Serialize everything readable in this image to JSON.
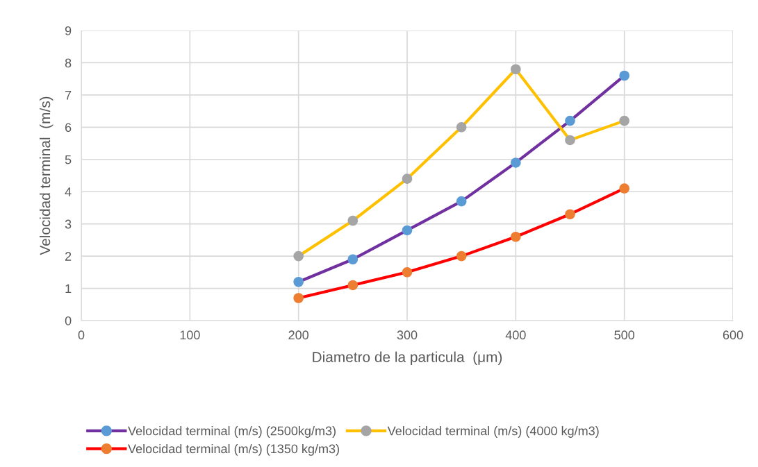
{
  "chart_data": {
    "type": "line",
    "xlabel": "Diametro de la particula  (μm)",
    "ylabel": "Velocidad terminal  (m/s)",
    "x": [
      200,
      250,
      300,
      350,
      400,
      450,
      500
    ],
    "series": [
      {
        "name": "Velocidad terminal (m/s) (2500kg/m3)",
        "color": "#7030a0",
        "colors": [
          "#5b9bd5",
          "#5b9bd5",
          "#5b9bd5",
          "#5b9bd5",
          "#5b9bd5",
          "#5b9bd5",
          "#5b9bd5"
        ],
        "values": [
          1.2,
          1.9,
          2.8,
          3.7,
          4.9,
          6.2,
          7.6
        ]
      },
      {
        "name": "Velocidad terminal (m/s) (1350 kg/m3)",
        "color": "#ff0000",
        "colors": [
          "#ed7d31",
          "#ed7d31",
          "#ed7d31",
          "#ed7d31",
          "#ed7d31",
          "#ed7d31",
          "#ed7d31"
        ],
        "values": [
          0.7,
          1.1,
          1.5,
          2.0,
          2.6,
          3.3,
          4.1
        ]
      },
      {
        "name": "Velocidad terminal (m/s) (4000 kg/m3)",
        "color": "#ffc000",
        "colors": [
          "#a5a5a5",
          "#a5a5a5",
          "#a5a5a5",
          "#a5a5a5",
          "#a5a5a5",
          "#a5a5a5",
          "#a5a5a5"
        ],
        "values": [
          2.0,
          3.1,
          4.4,
          6.0,
          7.8,
          5.6,
          6.2
        ]
      }
    ],
    "xlim": [
      0,
      600
    ],
    "xticks": [
      0,
      100,
      200,
      300,
      400,
      500,
      600
    ],
    "ylim": [
      0,
      9
    ],
    "yticks": [
      0,
      1,
      2,
      3,
      4,
      5,
      6,
      7,
      8,
      9
    ],
    "grid": true,
    "legend": "bottom",
    "marker": "circle",
    "line_style": "solid"
  }
}
